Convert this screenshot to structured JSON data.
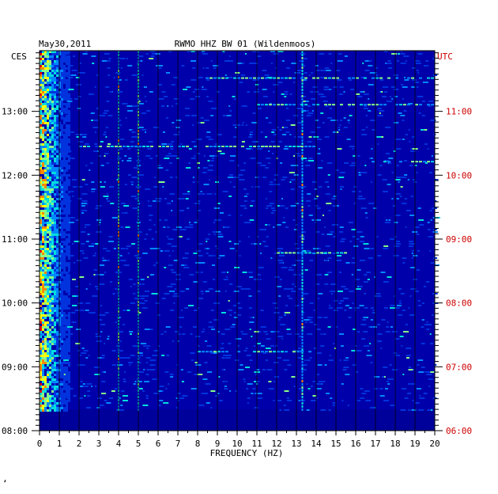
{
  "chart_data": {
    "type": "heatmap",
    "title": "RWMO HHZ BW 01 (Wildenmoos)",
    "date": "May30,2011",
    "xlabel": "FREQUENCY (HZ)",
    "x_ticks": [
      "0",
      "1",
      "2",
      "3",
      "4",
      "5",
      "6",
      "7",
      "8",
      "9",
      "10",
      "11",
      "12",
      "13",
      "14",
      "15",
      "16",
      "17",
      "18",
      "19",
      "20"
    ],
    "xlim": [
      0,
      20
    ],
    "left_axis": {
      "title": "CES",
      "ticks": [
        "08:00",
        "09:00",
        "10:00",
        "11:00",
        "12:00",
        "13:00"
      ],
      "range_hours": [
        8.0,
        13.95
      ],
      "color": "#000000"
    },
    "right_axis": {
      "title": "UTC",
      "ticks": [
        "06:00",
        "07:00",
        "08:00",
        "09:00",
        "10:00",
        "11:00"
      ],
      "color": "#cc0000"
    },
    "data_start_time": "08:20",
    "background_color": "#0000aa",
    "colormap": [
      "#0000aa",
      "#0033dd",
      "#0088ff",
      "#00dddd",
      "#88ff88",
      "#ffff00",
      "#ff8800",
      "#ff0000"
    ],
    "persistent_lines_hz": [
      4.0,
      5.0,
      13.3
    ],
    "low_freq_band_hz": [
      0,
      1.5
    ]
  },
  "footer": {
    "mark": "‘"
  }
}
